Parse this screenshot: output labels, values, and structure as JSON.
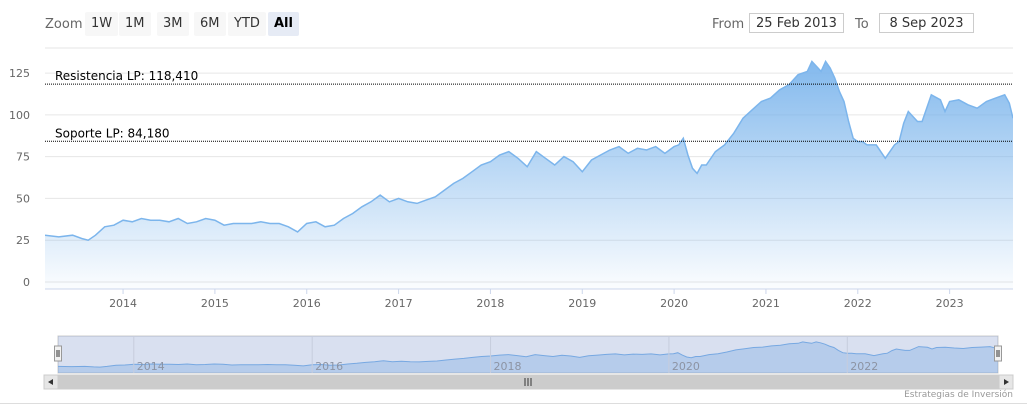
{
  "toolbar": {
    "zoom_label": "Zoom",
    "buttons": [
      "1W",
      "1M",
      "3M",
      "6M",
      "YTD",
      "All"
    ],
    "active_button": "All",
    "from_label": "From",
    "from_value": "25 Feb 2013",
    "to_label": "To",
    "to_value": "8 Sep 2023"
  },
  "credits": "Estrategias de Inversión",
  "chart_data": {
    "type": "area",
    "title": "",
    "xlabel": "",
    "ylabel": "",
    "ylim": [
      0,
      140
    ],
    "yticks": [
      0,
      25,
      50,
      75,
      100,
      125
    ],
    "xlim": [
      2013.15,
      2023.69
    ],
    "xticks": [
      "2014",
      "2015",
      "2016",
      "2017",
      "2018",
      "2019",
      "2020",
      "2021",
      "2022",
      "2023"
    ],
    "navigator_ticks": [
      "2014",
      "2016",
      "2018",
      "2020",
      "2022"
    ],
    "grid": true,
    "colors": {
      "line": "#7cb5ec",
      "fill_top": "#7cb5ec",
      "fill_bottom": "#ffffff",
      "ref_line": "#000000"
    },
    "reference_lines": [
      {
        "label": "Resistencia LP: 118,410",
        "value": 118.41
      },
      {
        "label": "Soporte LP: 84,180",
        "value": 84.18
      }
    ],
    "series": [
      {
        "x": [
          2013.15,
          2013.3,
          2013.45,
          2013.55,
          2013.62,
          2013.7,
          2013.8,
          2013.9,
          2014.0,
          2014.1,
          2014.2,
          2014.3,
          2014.4,
          2014.5,
          2014.6,
          2014.7,
          2014.8,
          2014.9,
          2015.0,
          2015.1,
          2015.2,
          2015.3,
          2015.4,
          2015.5,
          2015.6,
          2015.7,
          2015.8,
          2015.9,
          2016.0,
          2016.1,
          2016.2,
          2016.3,
          2016.4,
          2016.5,
          2016.6,
          2016.7,
          2016.8,
          2016.9,
          2017.0,
          2017.1,
          2017.2,
          2017.3,
          2017.4,
          2017.5,
          2017.6,
          2017.7,
          2017.8,
          2017.9,
          2018.0,
          2018.1,
          2018.2,
          2018.3,
          2018.4,
          2018.5,
          2018.6,
          2018.7,
          2018.8,
          2018.9,
          2019.0,
          2019.1,
          2019.2,
          2019.3,
          2019.4,
          2019.5,
          2019.6,
          2019.7,
          2019.8,
          2019.9,
          2020.0,
          2020.05,
          2020.1,
          2020.15,
          2020.2,
          2020.25,
          2020.3,
          2020.35,
          2020.45,
          2020.55,
          2020.65,
          2020.75,
          2020.85,
          2020.95,
          2021.05,
          2021.15,
          2021.25,
          2021.35,
          2021.45,
          2021.5,
          2021.55,
          2021.6,
          2021.65,
          2021.7,
          2021.75,
          2021.8,
          2021.85,
          2021.9,
          2021.95,
          2022.0,
          2022.05,
          2022.1,
          2022.2,
          2022.3,
          2022.4,
          2022.45,
          2022.5,
          2022.55,
          2022.6,
          2022.65,
          2022.7,
          2022.8,
          2022.9,
          2022.95,
          2023.0,
          2023.1,
          2023.2,
          2023.3,
          2023.4,
          2023.5,
          2023.6,
          2023.65,
          2023.69
        ],
        "y": [
          28,
          27,
          28,
          26,
          25,
          28,
          33,
          34,
          37,
          36,
          38,
          37,
          37,
          36,
          38,
          35,
          36,
          38,
          37,
          34,
          35,
          35,
          35,
          36,
          35,
          35,
          33,
          30,
          35,
          36,
          33,
          34,
          38,
          41,
          45,
          48,
          52,
          48,
          50,
          48,
          47,
          49,
          51,
          55,
          59,
          62,
          66,
          70,
          72,
          76,
          78,
          74,
          69,
          78,
          74,
          70,
          75,
          72,
          66,
          73,
          76,
          79,
          81,
          77,
          80,
          79,
          81,
          77,
          81,
          82,
          86,
          76,
          68,
          65,
          70,
          70,
          78,
          82,
          89,
          98,
          103,
          108,
          110,
          115,
          118,
          124,
          126,
          132,
          129,
          126,
          132,
          128,
          122,
          114,
          108,
          96,
          86,
          84,
          84,
          82,
          82,
          74,
          82,
          84,
          95,
          102,
          99,
          96,
          96,
          112,
          109,
          102,
          108,
          109,
          106,
          104,
          108,
          110,
          112,
          107,
          98
        ]
      }
    ]
  }
}
